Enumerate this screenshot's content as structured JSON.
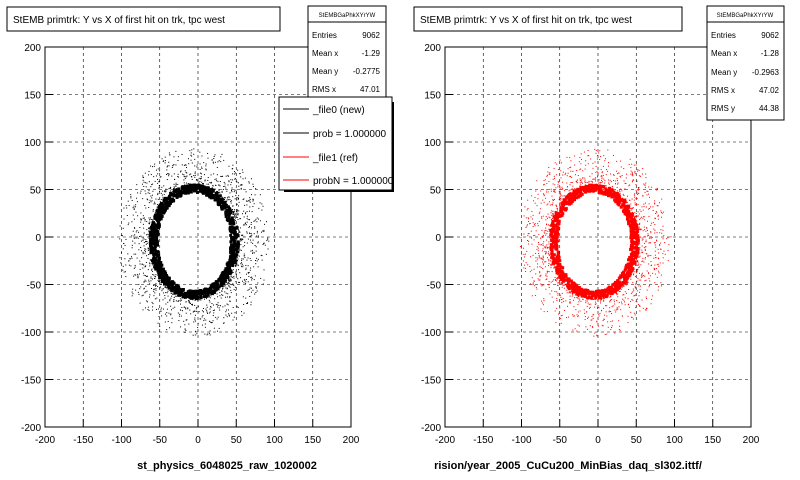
{
  "footer_text": "",
  "chart_data": [
    {
      "type": "scatter",
      "title": "StEMB primtrk: Y vs X of first hit on trk, tpc west",
      "xlabel": "st_physics_6048025_raw_1020002",
      "ylabel": "",
      "xlim": [
        -200,
        200
      ],
      "ylim": [
        -200,
        200
      ],
      "xticks": [
        -200,
        -150,
        -100,
        -50,
        0,
        50,
        100,
        150,
        200
      ],
      "yticks": [
        -200,
        -150,
        -100,
        -50,
        0,
        50,
        100,
        150,
        200
      ],
      "grid": true,
      "color": "#000000",
      "stats": {
        "name": "StEMBGaPhkXYrYW",
        "rows": [
          {
            "label": "Entries",
            "value": "9062"
          },
          {
            "label": "Mean x",
            "value": "-1.29"
          },
          {
            "label": "Mean y",
            "value": "-0.2775"
          },
          {
            "label": "RMS x",
            "value": "47.01"
          }
        ]
      },
      "legend": {
        "placement": "top-right",
        "entries": [
          {
            "label": "_file0 (new)",
            "color": "#000000"
          },
          {
            "label": "prob = 1.000000",
            "color": "#000000"
          },
          {
            "label": "_file1 (ref)",
            "color": "#ff0000"
          },
          {
            "label": "probN = 1.000000",
            "color": "#ff0000"
          }
        ]
      },
      "ring": {
        "center_x": -5,
        "center_y": -5,
        "radius_x": 58,
        "radius_y": 60,
        "inner_empty_radius_x": 48,
        "inner_empty_radius_y": 52,
        "scatter_extent": 100
      }
    },
    {
      "type": "scatter",
      "title": "StEMB primtrk: Y vs X of first hit on trk, tpc west",
      "xlabel": "rision/year_2005_CuCu200_MinBias_daq_sl302.ittf/",
      "ylabel": "",
      "xlim": [
        -200,
        200
      ],
      "ylim": [
        -200,
        200
      ],
      "xticks": [
        -200,
        -150,
        -100,
        -50,
        0,
        50,
        100,
        150,
        200
      ],
      "yticks": [
        -200,
        -150,
        -100,
        -50,
        0,
        50,
        100,
        150,
        200
      ],
      "grid": true,
      "color": "#ff0000",
      "stats": {
        "name": "StEMBGaPhkXYrYW",
        "rows": [
          {
            "label": "Entries",
            "value": "9062"
          },
          {
            "label": "Mean x",
            "value": "-1.28"
          },
          {
            "label": "Mean y",
            "value": "-0.2963"
          },
          {
            "label": "RMS x",
            "value": "47.02"
          },
          {
            "label": "RMS y",
            "value": "44.38"
          }
        ]
      },
      "ring": {
        "center_x": -5,
        "center_y": -5,
        "radius_x": 58,
        "radius_y": 60,
        "inner_empty_radius_x": 48,
        "inner_empty_radius_y": 52,
        "scatter_extent": 100
      }
    }
  ]
}
